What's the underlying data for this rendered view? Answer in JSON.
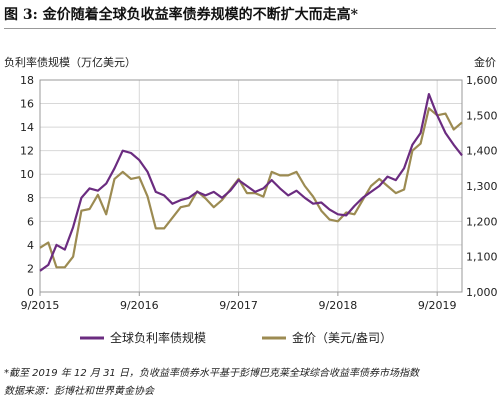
{
  "title": "图 3: 金价随着全球负收益率债券规模的不断扩大而走高*",
  "notes": [
    "*截至 2019 年 12 月 31 日，负收益率债券水平基于彭博巴克莱全球综合收益率债券市场指数",
    "数据来源：彭博社和世界黄金协会"
  ],
  "chart_data": {
    "type": "line",
    "left_axis": {
      "label": "负利率债规模（万亿美元）",
      "ylim": [
        0,
        18
      ],
      "ticks": [
        "0",
        "2",
        "4",
        "6",
        "8",
        "10",
        "12",
        "14",
        "16",
        "18"
      ]
    },
    "right_axis": {
      "label": "金价",
      "ylim": [
        1000,
        1600
      ],
      "ticks": [
        "1,000",
        "1,100",
        "1,200",
        "1,300",
        "1,400",
        "1,500",
        "1,600"
      ]
    },
    "x_axis": {
      "ticks": [
        "9/2015",
        "9/2016",
        "9/2017",
        "9/2018",
        "9/2019"
      ],
      "range": [
        "2015-09",
        "2019-12"
      ]
    },
    "grid": true,
    "series": [
      {
        "name": "全球负利率债规模",
        "axis": "left",
        "color": "#6b2c80",
        "x": [
          "2015-09",
          "2015-10",
          "2015-11",
          "2015-12",
          "2016-01",
          "2016-02",
          "2016-03",
          "2016-04",
          "2016-05",
          "2016-06",
          "2016-07",
          "2016-08",
          "2016-09",
          "2016-10",
          "2016-11",
          "2016-12",
          "2017-01",
          "2017-02",
          "2017-03",
          "2017-04",
          "2017-05",
          "2017-06",
          "2017-07",
          "2017-08",
          "2017-09",
          "2017-10",
          "2017-11",
          "2017-12",
          "2018-01",
          "2018-02",
          "2018-03",
          "2018-04",
          "2018-05",
          "2018-06",
          "2018-07",
          "2018-08",
          "2018-09",
          "2018-10",
          "2018-11",
          "2018-12",
          "2019-01",
          "2019-02",
          "2019-03",
          "2019-04",
          "2019-05",
          "2019-06",
          "2019-07",
          "2019-08",
          "2019-09",
          "2019-10",
          "2019-11",
          "2019-12"
        ],
        "values": [
          1.8,
          2.3,
          4.0,
          3.6,
          5.5,
          8.0,
          8.8,
          8.6,
          9.2,
          10.5,
          12.0,
          11.8,
          11.2,
          10.2,
          8.5,
          8.2,
          7.5,
          7.8,
          8.0,
          8.5,
          8.2,
          8.5,
          8.0,
          8.6,
          9.5,
          9.0,
          8.5,
          8.8,
          9.5,
          8.8,
          8.2,
          8.6,
          8.0,
          7.5,
          7.6,
          7.0,
          6.6,
          6.5,
          7.3,
          8.0,
          8.5,
          9.0,
          9.8,
          9.5,
          10.5,
          12.5,
          13.5,
          16.8,
          15.0,
          13.5,
          12.5,
          11.6
        ]
      },
      {
        "name": "金价（美元/盎司）",
        "axis": "right",
        "color": "#9c8b52",
        "x": [
          "2015-09",
          "2015-10",
          "2015-11",
          "2015-12",
          "2016-01",
          "2016-02",
          "2016-03",
          "2016-04",
          "2016-05",
          "2016-06",
          "2016-07",
          "2016-08",
          "2016-09",
          "2016-10",
          "2016-11",
          "2016-12",
          "2017-01",
          "2017-02",
          "2017-03",
          "2017-04",
          "2017-05",
          "2017-06",
          "2017-07",
          "2017-08",
          "2017-09",
          "2017-10",
          "2017-11",
          "2017-12",
          "2018-01",
          "2018-02",
          "2018-03",
          "2018-04",
          "2018-05",
          "2018-06",
          "2018-07",
          "2018-08",
          "2018-09",
          "2018-10",
          "2018-11",
          "2018-12",
          "2019-01",
          "2019-02",
          "2019-03",
          "2019-04",
          "2019-05",
          "2019-06",
          "2019-07",
          "2019-08",
          "2019-09",
          "2019-10",
          "2019-11",
          "2019-12"
        ],
        "values": [
          1125,
          1140,
          1070,
          1070,
          1100,
          1230,
          1235,
          1275,
          1220,
          1320,
          1340,
          1320,
          1325,
          1270,
          1180,
          1180,
          1210,
          1240,
          1245,
          1285,
          1265,
          1240,
          1260,
          1290,
          1320,
          1280,
          1280,
          1270,
          1340,
          1330,
          1330,
          1340,
          1300,
          1270,
          1230,
          1205,
          1200,
          1225,
          1220,
          1260,
          1300,
          1320,
          1300,
          1280,
          1290,
          1400,
          1420,
          1520,
          1500,
          1505,
          1460,
          1480
        ]
      }
    ]
  }
}
